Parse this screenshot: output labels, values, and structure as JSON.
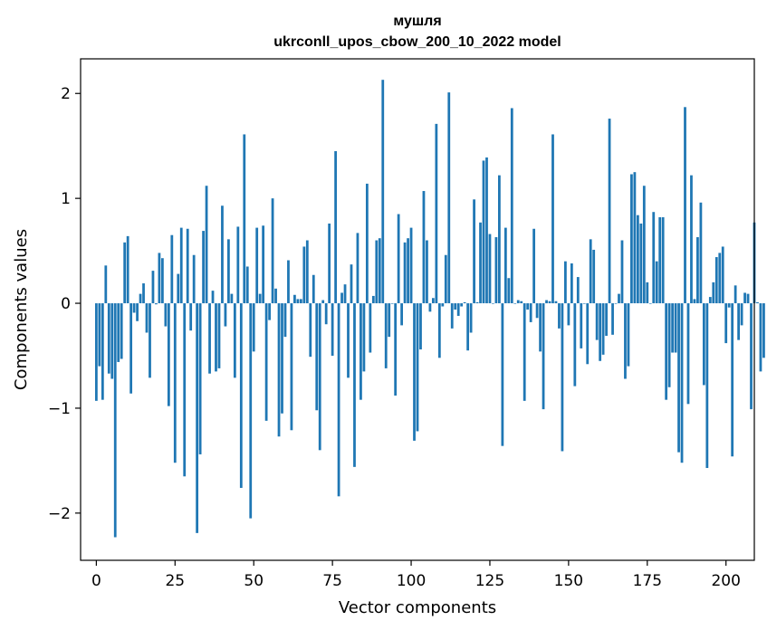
{
  "chart_data": {
    "type": "bar",
    "title": "мушля",
    "subtitle": "ukrconll_upos_cbow_200_10_2022 model",
    "xlabel": "Vector components",
    "ylabel": "Components values",
    "xlim": [
      -5,
      209
    ],
    "ylim": [
      -2.45,
      2.33
    ],
    "xticks": [
      0,
      25,
      50,
      75,
      100,
      125,
      150,
      175,
      200
    ],
    "yticks": [
      -2,
      -1,
      0,
      1,
      2
    ],
    "ytick_labels": [
      "−2",
      "−1",
      "0",
      "1",
      "2"
    ],
    "bar_color": "#1f77b4",
    "grid": false,
    "values": [
      -0.93,
      -0.6,
      -0.92,
      0.36,
      -0.67,
      -0.72,
      -2.23,
      -0.56,
      -0.53,
      0.58,
      0.64,
      -0.86,
      -0.09,
      -0.17,
      0.09,
      0.19,
      -0.28,
      -0.71,
      0.31,
      -0.01,
      0.48,
      0.43,
      -0.22,
      -0.98,
      0.65,
      -1.52,
      0.28,
      0.72,
      -1.65,
      0.71,
      -0.26,
      0.46,
      -2.19,
      -1.44,
      0.69,
      1.12,
      -0.67,
      0.12,
      -0.65,
      -0.62,
      0.93,
      -0.22,
      0.61,
      0.09,
      -0.71,
      0.73,
      -1.76,
      1.61,
      0.35,
      -2.05,
      -0.46,
      0.72,
      0.09,
      0.74,
      -1.12,
      -0.16,
      1.0,
      0.14,
      -1.27,
      -1.05,
      -0.32,
      0.41,
      -1.21,
      0.08,
      0.04,
      0.04,
      0.54,
      0.6,
      -0.51,
      0.27,
      -1.02,
      -1.4,
      0.03,
      -0.2,
      0.76,
      -0.5,
      1.45,
      -1.84,
      0.1,
      0.18,
      -0.71,
      0.37,
      -1.56,
      0.67,
      -0.92,
      -0.65,
      1.14,
      -0.47,
      0.07,
      0.6,
      0.62,
      2.13,
      -0.62,
      -0.32,
      0.0,
      -0.88,
      0.85,
      -0.21,
      0.58,
      0.62,
      0.72,
      -1.31,
      -1.22,
      -0.44,
      1.07,
      0.6,
      -0.08,
      0.05,
      1.71,
      -0.52,
      -0.03,
      0.46,
      2.01,
      -0.24,
      -0.06,
      -0.12,
      -0.03,
      0.01,
      -0.45,
      -0.28,
      0.99,
      0.01,
      0.77,
      1.36,
      1.39,
      0.66,
      0.0,
      0.63,
      1.22,
      -1.36,
      0.72,
      0.24,
      1.86,
      0.0,
      0.03,
      0.02,
      -0.93,
      -0.06,
      -0.18,
      0.71,
      -0.14,
      -0.46,
      -1.01,
      0.03,
      0.02,
      1.61,
      0.02,
      -0.24,
      -1.41,
      0.4,
      -0.21,
      0.38,
      -0.79,
      0.25,
      -0.43,
      0.0,
      -0.58,
      0.61,
      0.51,
      -0.35,
      -0.55,
      -0.49,
      -0.31,
      1.76,
      -0.3,
      0.0,
      0.09,
      0.6,
      -0.72,
      -0.6,
      1.23,
      1.25,
      0.84,
      0.76,
      1.12,
      0.2,
      0.0,
      0.87,
      0.4,
      0.82,
      0.82,
      -0.92,
      -0.8,
      -0.47,
      -0.47,
      -1.42,
      -1.52,
      1.87,
      -0.96,
      1.22,
      0.04,
      0.63,
      0.96,
      -0.78,
      -1.57,
      0.06,
      0.2,
      0.44,
      0.48,
      0.54,
      -0.38,
      -0.04,
      -1.46,
      0.17,
      -0.35,
      -0.21,
      0.1,
      0.09,
      -1.01,
      0.77,
      0.01,
      -0.65,
      -0.52
    ]
  }
}
